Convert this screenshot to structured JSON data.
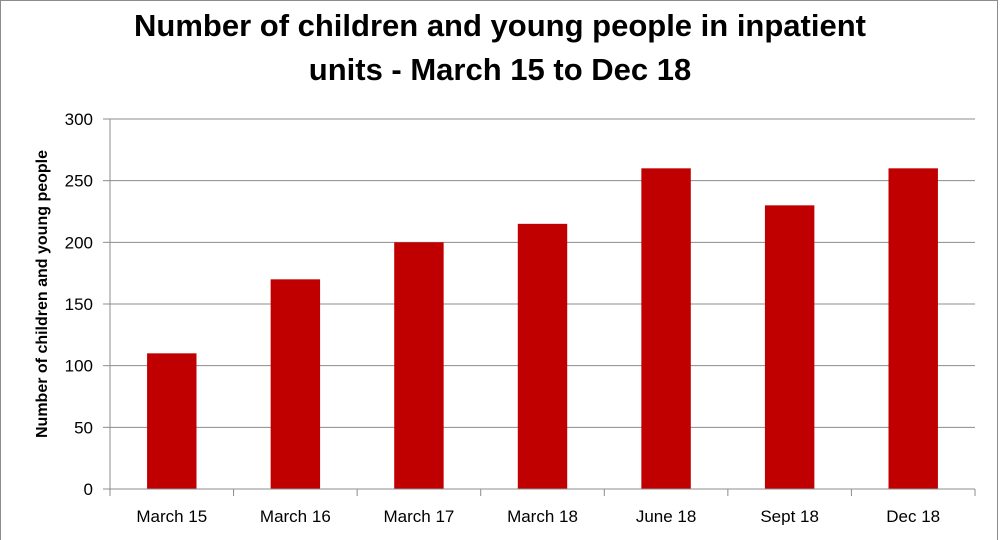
{
  "chart_data": {
    "type": "bar",
    "title_line1": "Number of children and young people in inpatient",
    "title_line2": "units - March 15 to Dec 18",
    "xlabel": "",
    "ylabel": "Number of children and young people",
    "categories": [
      "March 15",
      "March 16",
      "March 17",
      "March 18",
      "June 18",
      "Sept 18",
      "Dec 18"
    ],
    "values": [
      110,
      170,
      200,
      215,
      260,
      230,
      260
    ],
    "ylim": [
      0,
      300
    ],
    "yticks": [
      0,
      50,
      100,
      150,
      200,
      250,
      300
    ],
    "grid": true,
    "colors": {
      "bar": "#C00000",
      "grid": "#8c8c8c",
      "axis": "#8c8c8c"
    }
  }
}
